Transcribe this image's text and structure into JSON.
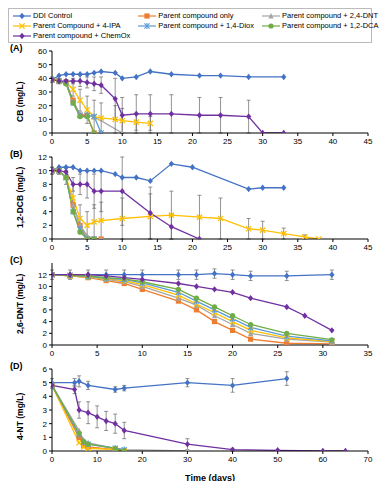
{
  "chart_data": [
    {
      "type": "line",
      "title": "(A)",
      "y_label": "CB (mg/L)",
      "legend": "top",
      "xlim": [
        0,
        45
      ],
      "xticks": [
        0,
        5,
        10,
        15,
        20,
        25,
        30,
        35,
        40,
        45
      ],
      "ylim": [
        0,
        60
      ],
      "yticks": [
        0,
        10,
        20,
        30,
        40,
        50,
        60
      ],
      "series": [
        {
          "name": "DDI Control",
          "color": "#4472C4",
          "marker": "diamond",
          "x": [
            0,
            1,
            2,
            3,
            4,
            5,
            6,
            7,
            9,
            10,
            12,
            14,
            17,
            21,
            24,
            28,
            33
          ],
          "values": [
            39,
            42,
            43,
            43,
            43,
            43,
            44,
            45,
            44,
            40,
            41,
            45,
            43,
            42,
            42,
            41,
            41
          ]
        },
        {
          "name": "Parent compound only",
          "color": "#ED7D31",
          "marker": "square",
          "x": [
            0,
            1,
            2,
            3,
            4,
            5,
            6
          ],
          "values": [
            39,
            38,
            37,
            24,
            13,
            13,
            0
          ]
        },
        {
          "name": "Parent compound + 2,4-DNT",
          "color": "#A5A5A5",
          "marker": "triangle",
          "x": [
            0,
            1,
            2,
            3,
            4,
            5,
            6,
            10
          ],
          "values": [
            39,
            38,
            37,
            23,
            13,
            13,
            12,
            0
          ]
        },
        {
          "name": "Parent Compound + 4-IPA",
          "color": "#FFC000",
          "marker": "x",
          "x": [
            0,
            1,
            2,
            3,
            4,
            5,
            6,
            7,
            9,
            10,
            12,
            14
          ],
          "values": [
            39,
            38,
            37,
            32,
            24,
            17,
            12,
            11,
            10,
            9,
            8,
            7
          ],
          "error": [
            2,
            2,
            2,
            5,
            8,
            10,
            12,
            11,
            10,
            9,
            6,
            5
          ]
        },
        {
          "name": "Parent compound + 1,4-Diox",
          "color": "#5B9BD5",
          "marker": "star",
          "x": [
            0,
            1,
            2,
            3,
            4,
            5,
            6,
            7
          ],
          "values": [
            39,
            38,
            37,
            22,
            13,
            13,
            12,
            0
          ]
        },
        {
          "name": "Parent compound + 1,2-DCA",
          "color": "#70AD47",
          "marker": "circle",
          "x": [
            0,
            1,
            2,
            3,
            4,
            5,
            6
          ],
          "values": [
            39,
            38,
            36,
            22,
            12,
            12,
            0
          ]
        },
        {
          "name": "Parent compound + ChemOx",
          "color": "#7030A0",
          "marker": "diamond",
          "x": [
            0,
            1,
            2,
            3,
            4,
            5,
            6,
            7,
            9,
            10,
            12,
            14,
            17,
            21,
            24,
            28,
            30,
            33
          ],
          "values": [
            39,
            38,
            38,
            38,
            38,
            37,
            36,
            35,
            25,
            13,
            14,
            14,
            14,
            13,
            13,
            12,
            0,
            0
          ],
          "error": [
            1,
            1,
            1,
            2,
            4,
            4,
            5,
            6,
            15,
            13,
            14,
            14,
            14,
            13,
            13,
            12,
            0,
            0
          ]
        }
      ]
    },
    {
      "type": "line",
      "title": "(B)",
      "y_label": "1,2-DCB (mg/L)",
      "xlim": [
        0,
        45
      ],
      "xticks": [
        0,
        5,
        10,
        15,
        20,
        25,
        30,
        35,
        40,
        45
      ],
      "ylim": [
        0,
        12
      ],
      "yticks": [
        0,
        2,
        4,
        6,
        8,
        10,
        12
      ],
      "series": [
        {
          "name": "DDI Control",
          "color": "#4472C4",
          "marker": "diamond",
          "x": [
            0,
            1,
            2,
            3,
            4,
            5,
            6,
            7,
            9,
            10,
            12,
            14,
            17,
            20,
            28,
            30,
            33
          ],
          "values": [
            10,
            10.5,
            10.5,
            10.5,
            10,
            10,
            10,
            10,
            9.5,
            9,
            9,
            8.5,
            11,
            10.5,
            7.3,
            7.5,
            7.5
          ]
        },
        {
          "name": "Parent compound only",
          "color": "#ED7D31",
          "marker": "square",
          "x": [
            0,
            1,
            2,
            3,
            4,
            5,
            6,
            7
          ],
          "values": [
            10,
            10,
            9,
            5,
            2,
            0,
            0,
            0
          ]
        },
        {
          "name": "Parent compound + 2,4-DNT",
          "color": "#A5A5A5",
          "marker": "triangle",
          "x": [
            0,
            1,
            2,
            3,
            4,
            5,
            6,
            7
          ],
          "values": [
            10,
            10,
            9,
            5,
            2,
            0.5,
            0,
            0
          ]
        },
        {
          "name": "Parent Compound + 4-IPA",
          "color": "#FFC000",
          "marker": "x",
          "x": [
            0,
            1,
            2,
            3,
            4,
            5,
            6,
            7,
            10,
            14,
            17,
            21,
            24,
            28,
            30,
            33,
            36,
            38
          ],
          "values": [
            10,
            10,
            9,
            6,
            3,
            2,
            2.5,
            2.7,
            3,
            3.3,
            3.5,
            3.2,
            3,
            1.5,
            1.3,
            0.8,
            0.3,
            0
          ],
          "error": [
            0.5,
            0.5,
            1,
            2,
            2,
            2,
            2.5,
            2.7,
            3,
            3.3,
            3.5,
            3.2,
            3,
            1.5,
            1.3,
            0.8,
            0.3,
            0
          ]
        },
        {
          "name": "Parent compound + 1,4-Diox",
          "color": "#5B9BD5",
          "marker": "star",
          "x": [
            0,
            1,
            2,
            3,
            4,
            5,
            6
          ],
          "values": [
            10,
            10,
            9,
            4,
            1.5,
            0,
            0
          ]
        },
        {
          "name": "Parent compound + 1,2-DCA",
          "color": "#70AD47",
          "marker": "circle",
          "x": [
            0,
            1,
            2,
            3,
            4,
            5,
            6
          ],
          "values": [
            10,
            10,
            9,
            4,
            1,
            0,
            0
          ]
        },
        {
          "name": "Parent compound + ChemOx",
          "color": "#7030A0",
          "marker": "diamond",
          "x": [
            0,
            1,
            2,
            3,
            4,
            5,
            6,
            7,
            10,
            14,
            17,
            21
          ],
          "values": [
            10,
            10,
            9.8,
            8,
            8,
            8,
            7,
            7,
            7,
            3.8,
            1.8,
            0
          ],
          "error": [
            0.5,
            0.5,
            0.5,
            1,
            1.5,
            2,
            2.5,
            3,
            5,
            3.8,
            1.8,
            0
          ]
        }
      ]
    },
    {
      "type": "line",
      "title": "(C)",
      "y_label": "2,6-DNT (mg/L)",
      "xlim": [
        0,
        35
      ],
      "xticks": [
        0,
        5,
        10,
        15,
        20,
        25,
        30,
        35
      ],
      "ylim": [
        0,
        14
      ],
      "yticks": [
        0,
        2,
        4,
        6,
        8,
        10,
        12
      ],
      "series": [
        {
          "name": "DDI Control",
          "color": "#4472C4",
          "marker": "diamond",
          "x": [
            0,
            2,
            4,
            6,
            8,
            10,
            14,
            16,
            18,
            20,
            22,
            26,
            31
          ],
          "values": [
            12,
            12,
            12,
            12,
            12,
            12,
            12,
            12,
            12.2,
            12,
            11.8,
            11.8,
            12
          ],
          "error": [
            0.8,
            0.8,
            0.8,
            0.8,
            0.8,
            0.8,
            0.8,
            0.8,
            0.8,
            0.8,
            0.8,
            0.8,
            0.8
          ]
        },
        {
          "name": "Parent compound only",
          "color": "#ED7D31",
          "marker": "square",
          "x": [
            0,
            2,
            4,
            6,
            8,
            10,
            14,
            16,
            18,
            20,
            22,
            26,
            31
          ],
          "values": [
            12,
            11.8,
            11.5,
            11,
            10.5,
            9.5,
            7.5,
            6,
            4,
            2.5,
            1,
            0.3,
            0.2
          ]
        },
        {
          "name": "Parent compound + 2,4-DNT",
          "color": "#A5A5A5",
          "marker": "triangle",
          "x": [
            0,
            2,
            4,
            6,
            8,
            10,
            14,
            16,
            18,
            20,
            22,
            26,
            31
          ],
          "values": [
            12,
            11.8,
            11.6,
            11.2,
            10.8,
            10,
            8,
            6.8,
            5,
            3.5,
            2,
            1,
            0.5
          ]
        },
        {
          "name": "Parent Compound + 4-IPA",
          "color": "#FFC000",
          "marker": "x",
          "x": [
            0,
            2,
            4,
            6,
            8,
            10,
            14,
            16,
            18,
            20,
            22,
            26,
            31
          ],
          "values": [
            12,
            11.8,
            11.6,
            11.3,
            11,
            10.3,
            8.5,
            7,
            5.5,
            4,
            2.5,
            1.2,
            0.6
          ]
        },
        {
          "name": "Parent compound + 1,4-Diox",
          "color": "#5B9BD5",
          "marker": "star",
          "x": [
            0,
            2,
            4,
            6,
            8,
            10,
            14,
            16,
            18,
            20,
            22,
            26,
            31
          ],
          "values": [
            12,
            11.9,
            11.7,
            11.4,
            11.2,
            10.6,
            9,
            7.5,
            6,
            4.5,
            3,
            1.5,
            0.7
          ]
        },
        {
          "name": "Parent compound + 1,2-DCA",
          "color": "#70AD47",
          "marker": "circle",
          "x": [
            0,
            2,
            4,
            6,
            8,
            10,
            14,
            16,
            18,
            20,
            22,
            26,
            31
          ],
          "values": [
            12,
            11.9,
            11.8,
            11.5,
            11.3,
            10.8,
            9.5,
            8,
            6.5,
            5,
            3.5,
            2,
            0.9
          ]
        },
        {
          "name": "Parent compound + ChemOx",
          "color": "#7030A0",
          "marker": "diamond",
          "x": [
            0,
            2,
            4,
            6,
            8,
            10,
            14,
            16,
            18,
            20,
            22,
            26,
            28,
            31
          ],
          "values": [
            12,
            12,
            12,
            11.8,
            11.5,
            11.2,
            10.5,
            10,
            9.5,
            9,
            8,
            6.5,
            5,
            2.5
          ]
        }
      ]
    },
    {
      "type": "line",
      "title": "(D)",
      "y_label": "4-NT (mg/L)",
      "x_label": "Time (days)",
      "xlim": [
        0,
        70
      ],
      "xticks": [
        0,
        10,
        20,
        30,
        40,
        50,
        60,
        70
      ],
      "ylim": [
        0,
        6
      ],
      "yticks": [
        0,
        1,
        2,
        3,
        4,
        5,
        6
      ],
      "series": [
        {
          "name": "DDI Control",
          "color": "#4472C4",
          "marker": "diamond",
          "x": [
            0,
            5,
            6,
            8,
            14,
            16,
            30,
            40,
            52
          ],
          "values": [
            5,
            5,
            5.1,
            4.8,
            4.5,
            4.6,
            5,
            4.8,
            5.3
          ],
          "error": [
            0.3,
            0.3,
            0.4,
            0.3,
            0.2,
            0.2,
            0.3,
            0.5,
            0.5
          ]
        },
        {
          "name": "Parent compound only",
          "color": "#ED7D31",
          "marker": "square",
          "x": [
            0,
            6,
            7,
            8,
            14,
            16
          ],
          "values": [
            4.8,
            1,
            0.4,
            0.3,
            0.1,
            0
          ]
        },
        {
          "name": "Parent compound + 2,4-DNT",
          "color": "#A5A5A5",
          "marker": "triangle",
          "x": [
            0,
            6,
            7,
            8,
            14,
            16,
            30
          ],
          "values": [
            4.8,
            1.5,
            0.8,
            0.6,
            0.2,
            0.1,
            0
          ]
        },
        {
          "name": "Parent Compound + 4-IPA",
          "color": "#FFC000",
          "marker": "x",
          "x": [
            0,
            6,
            7,
            8,
            14,
            16
          ],
          "values": [
            4.8,
            0.6,
            0.3,
            0.2,
            0.1,
            0
          ]
        },
        {
          "name": "Parent compound + 1,4-Diox",
          "color": "#5B9BD5",
          "marker": "star",
          "x": [
            0,
            6,
            7,
            8,
            14,
            16
          ],
          "values": [
            4.8,
            1.2,
            0.6,
            0.5,
            0.2,
            0.1
          ]
        },
        {
          "name": "Parent compound + 1,2-DCA",
          "color": "#70AD47",
          "marker": "circle",
          "x": [
            0,
            6,
            7,
            8,
            14,
            16
          ],
          "values": [
            4.8,
            1.3,
            0.7,
            0.5,
            0.2,
            0
          ]
        },
        {
          "name": "Parent compound + ChemOx",
          "color": "#7030A0",
          "marker": "diamond",
          "x": [
            0,
            5,
            6,
            8,
            10,
            12,
            14,
            16,
            30,
            40,
            50,
            60,
            65
          ],
          "values": [
            4.8,
            4.5,
            3,
            2.8,
            2.5,
            2.2,
            2,
            1.5,
            0.5,
            0.1,
            0.05,
            0,
            0
          ],
          "error": [
            0.2,
            0.3,
            0.6,
            0.8,
            0.8,
            0.7,
            0.7,
            0.6,
            0.4,
            0.1,
            0,
            0,
            0
          ]
        }
      ]
    }
  ]
}
